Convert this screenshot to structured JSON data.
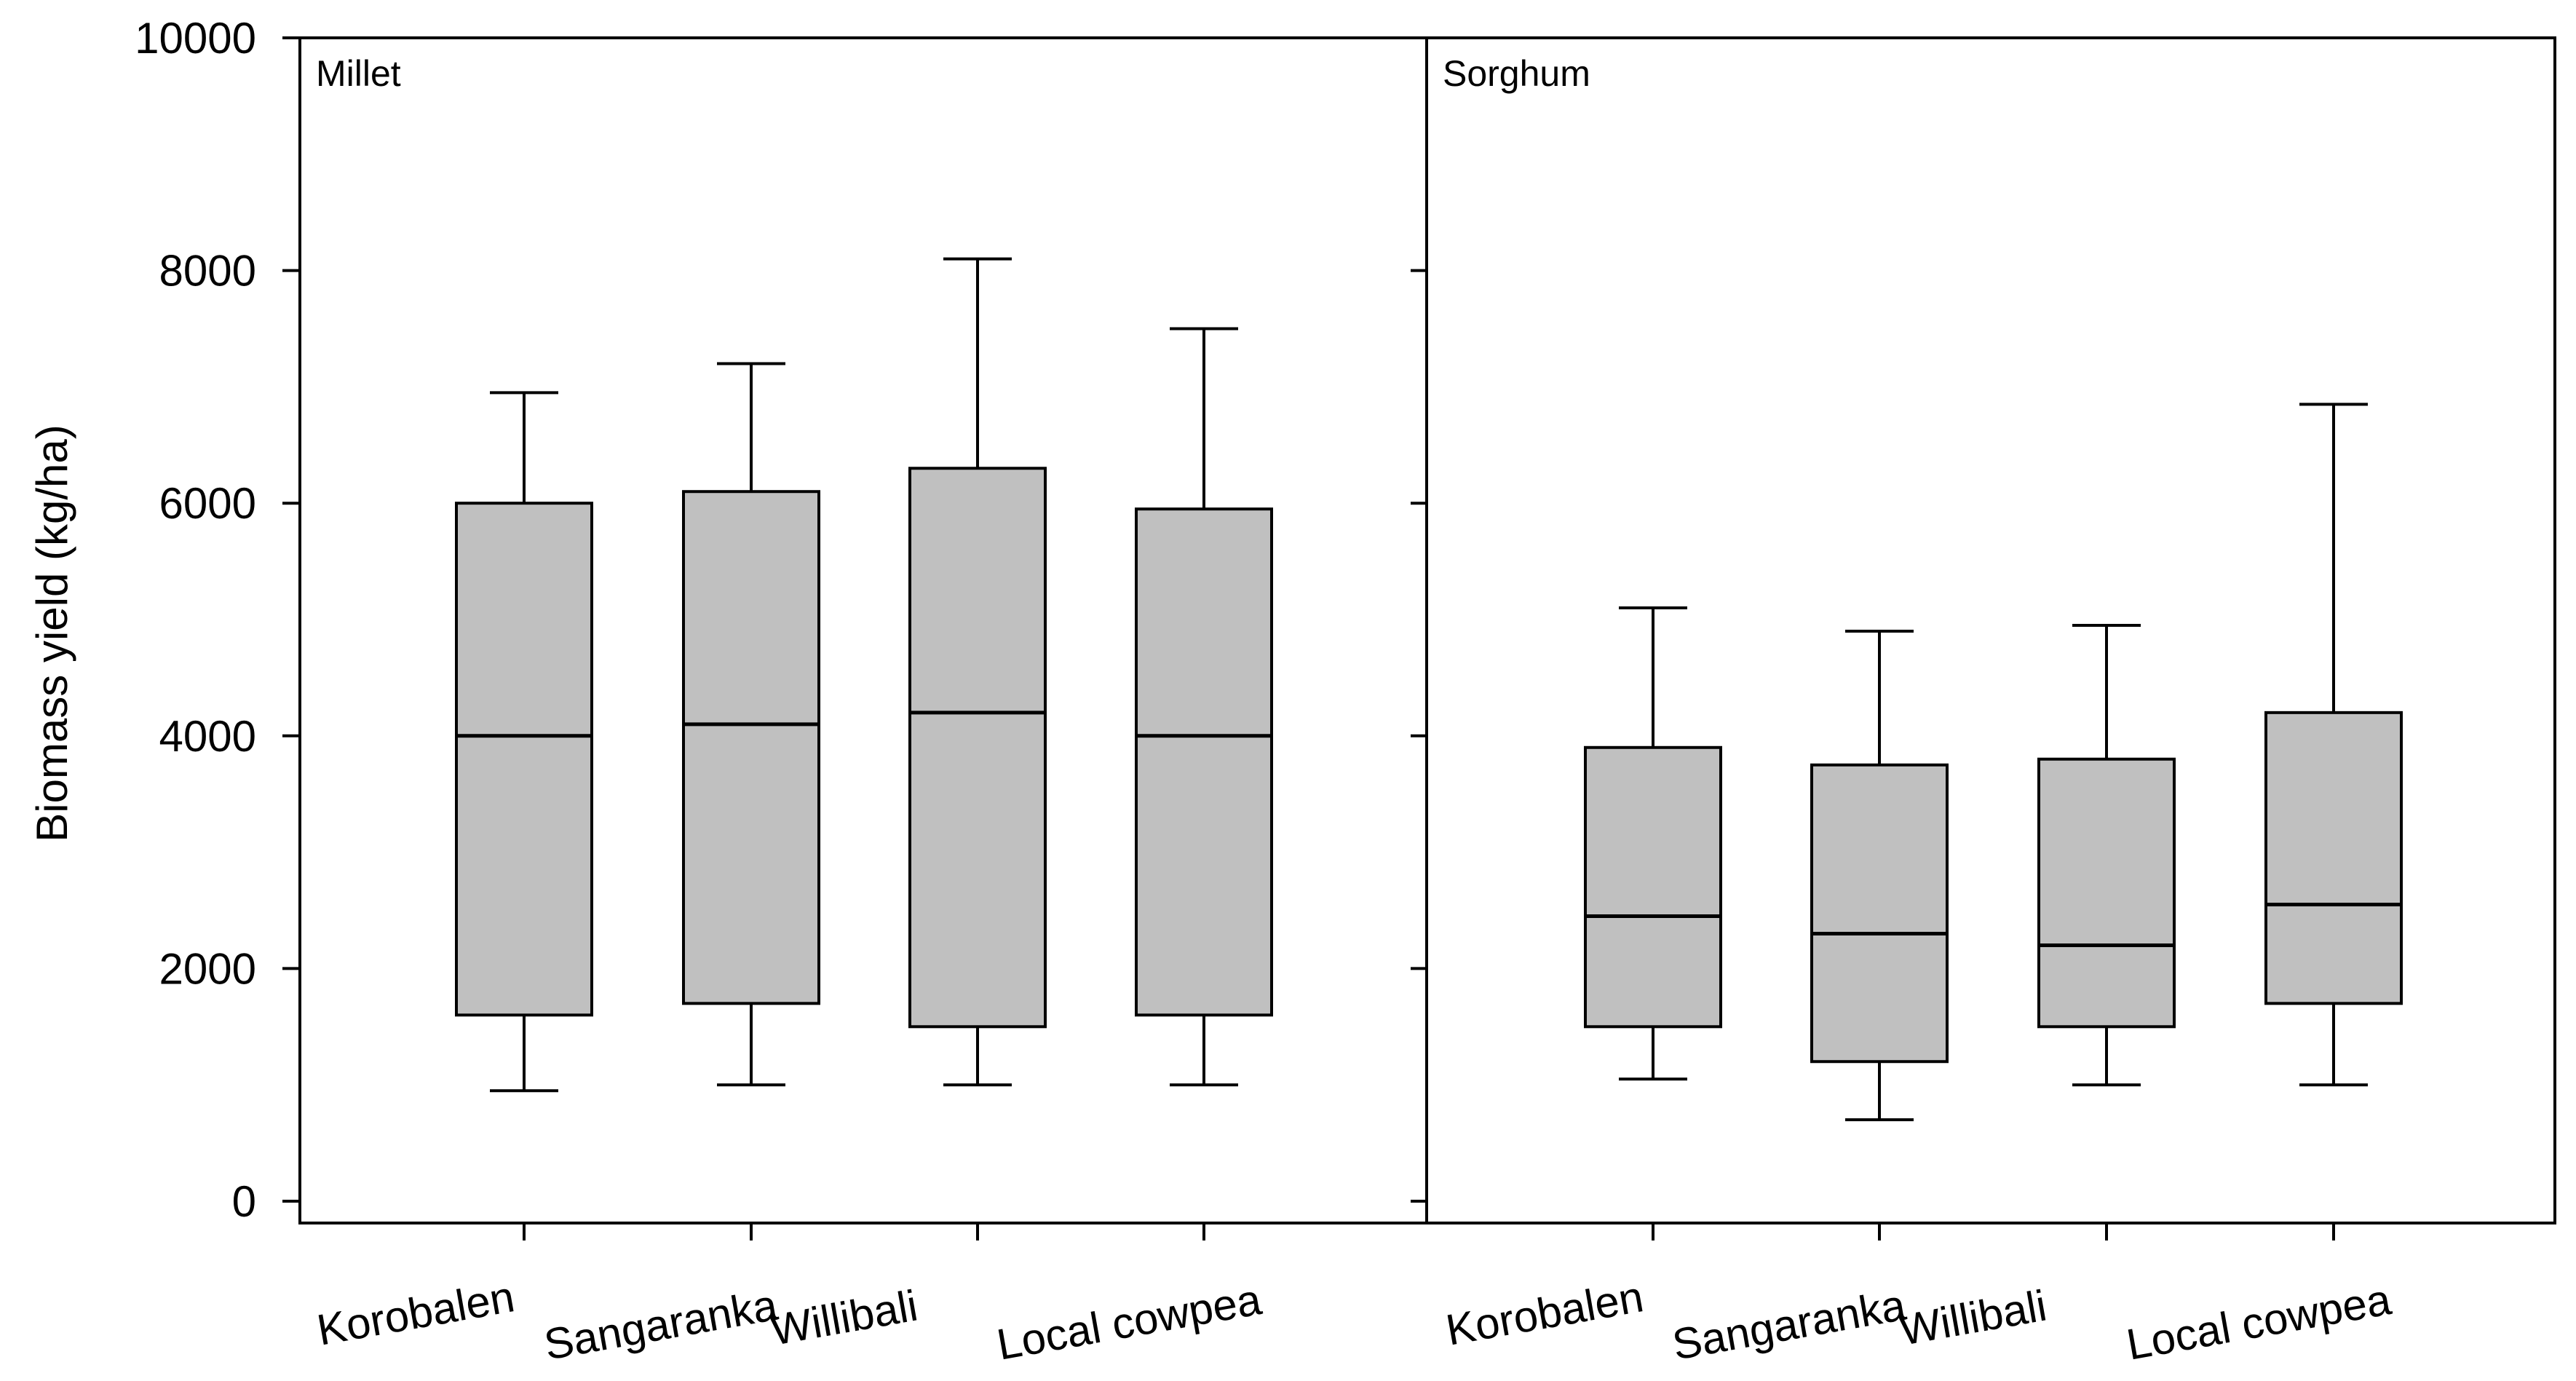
{
  "chart_data": {
    "type": "boxplot",
    "ylabel": "Biomass yield (kg/ha)",
    "ylim": [
      0,
      10000
    ],
    "yticks": [
      0,
      2000,
      4000,
      6000,
      8000,
      10000
    ],
    "ytick_labels": [
      "0",
      "2000",
      "4000",
      "6000",
      "8000",
      "10000"
    ],
    "categories": [
      "Korobalen",
      "Sangaranka",
      "Willibali",
      "Local cowpea"
    ],
    "box_color": "#c0c0c0",
    "panels": [
      {
        "name": "Millet",
        "boxes": [
          {
            "category": "Korobalen",
            "min": 950,
            "q1": 1600,
            "median": 4000,
            "q3": 6000,
            "max": 6950
          },
          {
            "category": "Sangaranka",
            "min": 1000,
            "q1": 1700,
            "median": 4100,
            "q3": 6100,
            "max": 7200
          },
          {
            "category": "Willibali",
            "min": 1000,
            "q1": 1500,
            "median": 4200,
            "q3": 6300,
            "max": 8100
          },
          {
            "category": "Local cowpea",
            "min": 1000,
            "q1": 1600,
            "median": 4000,
            "q3": 5950,
            "max": 7500
          }
        ]
      },
      {
        "name": "Sorghum",
        "boxes": [
          {
            "category": "Korobalen",
            "min": 1050,
            "q1": 1500,
            "median": 2450,
            "q3": 3900,
            "max": 5100
          },
          {
            "category": "Sangaranka",
            "min": 700,
            "q1": 1200,
            "median": 2300,
            "q3": 3750,
            "max": 4900
          },
          {
            "category": "Willibali",
            "min": 1000,
            "q1": 1500,
            "median": 2200,
            "q3": 3800,
            "max": 4950
          },
          {
            "category": "Local cowpea",
            "min": 1000,
            "q1": 1700,
            "median": 2550,
            "q3": 4200,
            "max": 6850
          }
        ]
      }
    ]
  }
}
